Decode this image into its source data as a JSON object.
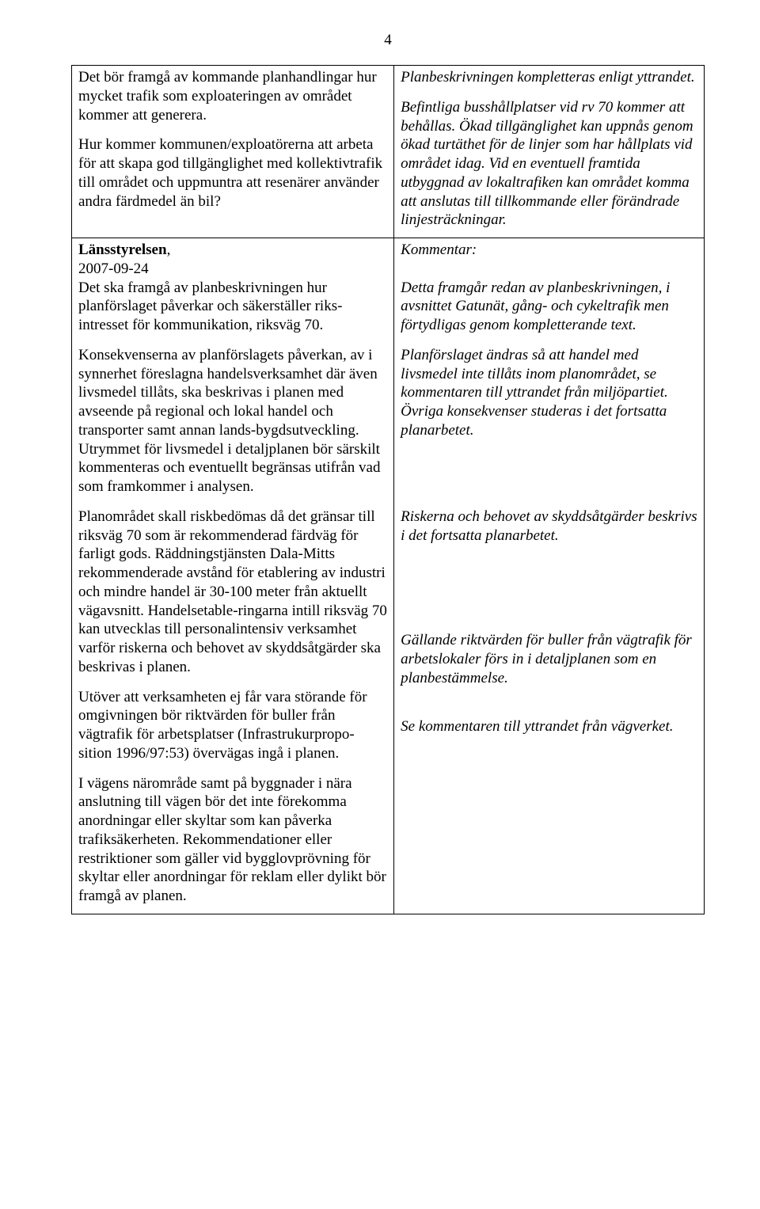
{
  "pageNumber": "4",
  "rows": [
    {
      "left": [
        {
          "style": "",
          "text": "Det bör framgå av kommande planhandlingar hur mycket trafik som exploateringen av området kommer att generera."
        },
        {
          "style": "",
          "text": "Hur kommer kommunen/exploatörerna att arbeta för att skapa god tillgänglighet med kollektivtrafik till området och uppmuntra att resenärer använder andra färdmedel än bil?"
        }
      ],
      "right": [
        {
          "style": "italic",
          "text": "Planbeskrivningen kompletteras enligt yttrandet."
        },
        {
          "style": "italic",
          "text": "Befintliga busshållplatser vid rv 70 kommer att behållas. Ökad tillgänglighet kan uppnås genom ökad turtäthet för de linjer som har hållplats vid området idag. Vid en eventuell framtida utbyggnad av lokaltrafiken kan området komma att anslutas till tillkommande eller förändrade linjesträckningar."
        }
      ]
    },
    {
      "left": [
        {
          "style": "",
          "html": "<span class=\"bold\">Länsstyrelsen</span>,<br>2007-09-24<br>Det ska framgå av planbeskrivningen hur planförslaget påverkar och säkerställer riks-intresset för kommunikation, riksväg 70."
        },
        {
          "style": "",
          "text": "Konsekvenserna av planförslagets påverkan, av i synnerhet föreslagna handelsverksamhet där även livsmedel tillåts, ska beskrivas i planen med avseende på regional och lokal handel och transporter samt annan lands-bygdsutveckling. Utrymmet för livsmedel i detaljplanen bör särskilt kommenteras och eventuellt begränsas utifrån vad som framkommer i analysen."
        },
        {
          "style": "",
          "text": "Planområdet skall riskbedömas då det gränsar till riksväg 70 som är rekommenderad färdväg för farligt gods. Räddningstjänsten Dala-Mitts rekommenderade avstånd för etablering av industri och mindre handel är 30-100 meter från aktuellt vägavsnitt. Handelsetable-ringarna intill riksväg 70 kan utvecklas till personalintensiv verksamhet varför riskerna och behovet av skyddsåtgärder ska beskrivas i planen."
        },
        {
          "style": "",
          "text": "Utöver att verksamheten ej får vara störande för omgivningen bör riktvärden för buller från vägtrafik för arbetsplatser (Infrastrukurpropo-sition 1996/97:53) övervägas ingå i planen."
        },
        {
          "style": "",
          "text": "I vägens närområde samt på byggnader i nära anslutning till vägen bör det inte förekomma anordningar eller skyltar som kan påverka trafiksäkerheten. Rekommendationer eller restriktioner som gäller vid bygglovprövning för skyltar eller anordningar för reklam eller dylikt bör framgå av planen."
        }
      ],
      "right": [
        {
          "style": "italic",
          "html": "Kommentar:<br><br>Detta framgår redan av planbeskrivningen, i avsnittet Gatunät, gång- och cykeltrafik men förtydligas genom kompletterande text."
        },
        {
          "style": "italic",
          "text": "Planförslaget ändras så att handel med livsmedel inte tillåts inom planområdet, se kommentaren till yttrandet från miljöpartiet. Övriga konsekvenser studeras i det fortsatta planarbetet."
        },
        {
          "style": "italic",
          "html": "<br><br><br>Riskerna och behovet av skyddsåtgärder beskrivs i det fortsatta planarbetet."
        },
        {
          "style": "italic",
          "html": "<br><br><br><br>Gällande riktvärden för buller från vägtrafik för arbetslokaler förs in i detaljplanen som en planbestämmelse."
        },
        {
          "style": "italic",
          "html": "<br>Se kommentaren till yttrandet från vägverket."
        }
      ]
    }
  ]
}
